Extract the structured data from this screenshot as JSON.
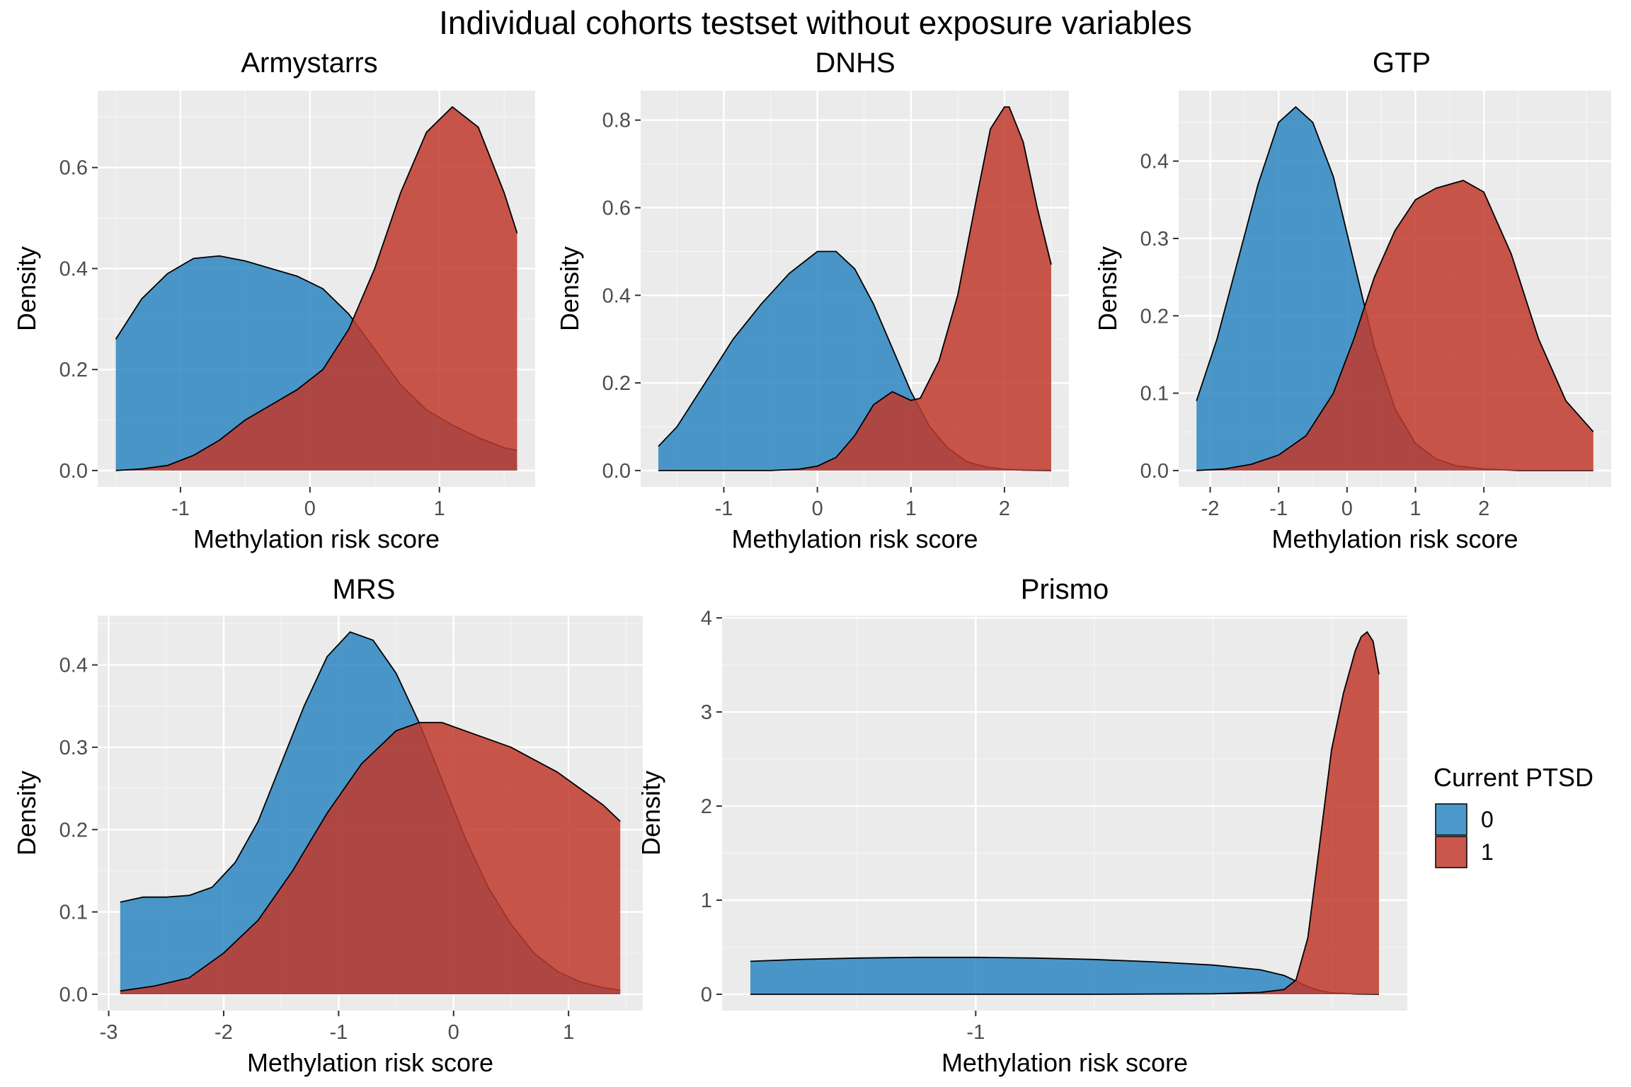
{
  "title": "Individual cohorts testset without exposure variables",
  "legend": {
    "title": "Current PTSD",
    "items": [
      {
        "label": "0",
        "color": "#2e86c1"
      },
      {
        "label": "1",
        "color": "#c0392b"
      }
    ],
    "placement": "right"
  },
  "chart_data": [
    {
      "type": "area",
      "title": "Armystarrs",
      "xlabel": "Methylation risk score",
      "ylabel": "Density",
      "xlim": [
        -1.5,
        1.6
      ],
      "ylim": [
        0,
        0.72
      ],
      "xticks": [
        -1,
        0,
        1
      ],
      "yticks": [
        0.0,
        0.2,
        0.4,
        0.6
      ],
      "grid": true,
      "series": [
        {
          "name": "0",
          "x": [
            -1.5,
            -1.3,
            -1.1,
            -0.9,
            -0.7,
            -0.5,
            -0.3,
            -0.1,
            0.1,
            0.3,
            0.5,
            0.7,
            0.9,
            1.1,
            1.3,
            1.5,
            1.6
          ],
          "y": [
            0.26,
            0.34,
            0.39,
            0.42,
            0.425,
            0.415,
            0.4,
            0.385,
            0.36,
            0.31,
            0.24,
            0.17,
            0.12,
            0.09,
            0.065,
            0.045,
            0.04
          ]
        },
        {
          "name": "1",
          "x": [
            -1.5,
            -1.3,
            -1.1,
            -0.9,
            -0.7,
            -0.5,
            -0.3,
            -0.1,
            0.1,
            0.3,
            0.5,
            0.7,
            0.9,
            1.1,
            1.3,
            1.5,
            1.6
          ],
          "y": [
            0.0,
            0.003,
            0.01,
            0.03,
            0.06,
            0.1,
            0.13,
            0.16,
            0.2,
            0.28,
            0.4,
            0.55,
            0.67,
            0.72,
            0.68,
            0.55,
            0.47
          ]
        }
      ]
    },
    {
      "type": "area",
      "title": "DNHS",
      "xlabel": "Methylation risk score",
      "ylabel": "Density",
      "xlim": [
        -1.7,
        2.5
      ],
      "ylim": [
        0,
        0.83
      ],
      "xticks": [
        -1,
        0,
        1,
        2
      ],
      "yticks": [
        0.0,
        0.2,
        0.4,
        0.6,
        0.8
      ],
      "grid": true,
      "series": [
        {
          "name": "0",
          "x": [
            -1.7,
            -1.5,
            -1.2,
            -0.9,
            -0.6,
            -0.3,
            0,
            0.2,
            0.4,
            0.6,
            0.8,
            1.0,
            1.2,
            1.4,
            1.6,
            1.8,
            2.0,
            2.2,
            2.5
          ],
          "y": [
            0.055,
            0.1,
            0.2,
            0.3,
            0.38,
            0.45,
            0.5,
            0.5,
            0.46,
            0.38,
            0.28,
            0.18,
            0.1,
            0.05,
            0.02,
            0.008,
            0.003,
            0.001,
            0.0
          ]
        },
        {
          "name": "1",
          "x": [
            -1.7,
            -1.0,
            -0.5,
            -0.2,
            0.0,
            0.2,
            0.4,
            0.6,
            0.8,
            1.0,
            1.1,
            1.3,
            1.5,
            1.7,
            1.85,
            2.0,
            2.05,
            2.2,
            2.35,
            2.5
          ],
          "y": [
            0.0,
            0.0,
            0.0,
            0.003,
            0.01,
            0.03,
            0.08,
            0.15,
            0.18,
            0.16,
            0.165,
            0.25,
            0.4,
            0.62,
            0.78,
            0.83,
            0.83,
            0.75,
            0.6,
            0.47
          ]
        }
      ]
    },
    {
      "type": "area",
      "title": "GTP",
      "xlabel": "Methylation risk score",
      "ylabel": "Density",
      "xlim": [
        -2.2,
        3.6
      ],
      "ylim": [
        0,
        0.47
      ],
      "xticks": [
        -2,
        -1,
        0,
        1,
        2
      ],
      "yticks": [
        0.0,
        0.1,
        0.2,
        0.3,
        0.4
      ],
      "grid": true,
      "series": [
        {
          "name": "0",
          "x": [
            -2.2,
            -1.9,
            -1.6,
            -1.3,
            -1.0,
            -0.75,
            -0.5,
            -0.2,
            0.1,
            0.4,
            0.7,
            1.0,
            1.3,
            1.6,
            2.0,
            2.5,
            3.0,
            3.6
          ],
          "y": [
            0.09,
            0.17,
            0.27,
            0.37,
            0.45,
            0.47,
            0.45,
            0.38,
            0.27,
            0.16,
            0.08,
            0.035,
            0.015,
            0.006,
            0.002,
            0.0,
            0.0,
            0.0
          ]
        },
        {
          "name": "1",
          "x": [
            -2.2,
            -1.8,
            -1.4,
            -1.0,
            -0.6,
            -0.2,
            0.1,
            0.4,
            0.7,
            1.0,
            1.3,
            1.7,
            2.0,
            2.4,
            2.8,
            3.2,
            3.6
          ],
          "y": [
            0.0,
            0.002,
            0.008,
            0.02,
            0.045,
            0.1,
            0.17,
            0.25,
            0.31,
            0.35,
            0.365,
            0.375,
            0.36,
            0.28,
            0.17,
            0.09,
            0.05
          ]
        }
      ]
    },
    {
      "type": "area",
      "title": "MRS",
      "xlabel": "Methylation risk score",
      "ylabel": "Density",
      "xlim": [
        -2.9,
        1.45
      ],
      "ylim": [
        0,
        0.44
      ],
      "xticks": [
        -3,
        -2,
        -1,
        0,
        1
      ],
      "yticks": [
        0.0,
        0.1,
        0.2,
        0.3,
        0.4
      ],
      "grid": true,
      "series": [
        {
          "name": "0",
          "x": [
            -2.9,
            -2.7,
            -2.5,
            -2.3,
            -2.1,
            -1.9,
            -1.7,
            -1.5,
            -1.3,
            -1.1,
            -0.9,
            -0.7,
            -0.5,
            -0.3,
            -0.1,
            0.1,
            0.3,
            0.5,
            0.7,
            0.9,
            1.1,
            1.3,
            1.45
          ],
          "y": [
            0.112,
            0.118,
            0.118,
            0.12,
            0.13,
            0.16,
            0.21,
            0.28,
            0.35,
            0.41,
            0.44,
            0.43,
            0.39,
            0.33,
            0.26,
            0.19,
            0.13,
            0.085,
            0.05,
            0.028,
            0.015,
            0.008,
            0.005
          ]
        },
        {
          "name": "1",
          "x": [
            -2.9,
            -2.6,
            -2.3,
            -2.0,
            -1.7,
            -1.4,
            -1.1,
            -0.8,
            -0.5,
            -0.3,
            -0.1,
            0.1,
            0.3,
            0.5,
            0.7,
            0.9,
            1.1,
            1.3,
            1.45
          ],
          "y": [
            0.004,
            0.01,
            0.02,
            0.05,
            0.09,
            0.15,
            0.22,
            0.28,
            0.32,
            0.33,
            0.33,
            0.32,
            0.31,
            0.3,
            0.285,
            0.27,
            0.25,
            0.23,
            0.21
          ]
        }
      ]
    },
    {
      "type": "area",
      "title": "Prismo",
      "xlabel": "Methylation risk score",
      "ylabel": "Density",
      "xlim": [
        -1.19,
        -0.66
      ],
      "ylim": [
        0,
        3.85
      ],
      "xticks": [
        -1
      ],
      "yticks": [
        0,
        1,
        2,
        3,
        4
      ],
      "grid": true,
      "series": [
        {
          "name": "0",
          "x": [
            -1.19,
            -1.15,
            -1.1,
            -1.05,
            -1.0,
            -0.95,
            -0.9,
            -0.85,
            -0.8,
            -0.76,
            -0.74,
            -0.73,
            -0.72,
            -0.71,
            -0.7,
            -0.68,
            -0.66
          ],
          "y": [
            0.35,
            0.37,
            0.385,
            0.392,
            0.392,
            0.385,
            0.37,
            0.345,
            0.31,
            0.26,
            0.2,
            0.14,
            0.08,
            0.04,
            0.015,
            0.003,
            0.0
          ]
        },
        {
          "name": "1",
          "x": [
            -1.19,
            -1.1,
            -1.0,
            -0.9,
            -0.8,
            -0.76,
            -0.74,
            -0.73,
            -0.72,
            -0.71,
            -0.7,
            -0.69,
            -0.68,
            -0.675,
            -0.67,
            -0.665,
            -0.66
          ],
          "y": [
            0.0,
            0.0,
            0.0,
            0.0,
            0.005,
            0.02,
            0.05,
            0.15,
            0.6,
            1.6,
            2.6,
            3.2,
            3.65,
            3.8,
            3.85,
            3.75,
            3.4
          ]
        }
      ]
    }
  ]
}
